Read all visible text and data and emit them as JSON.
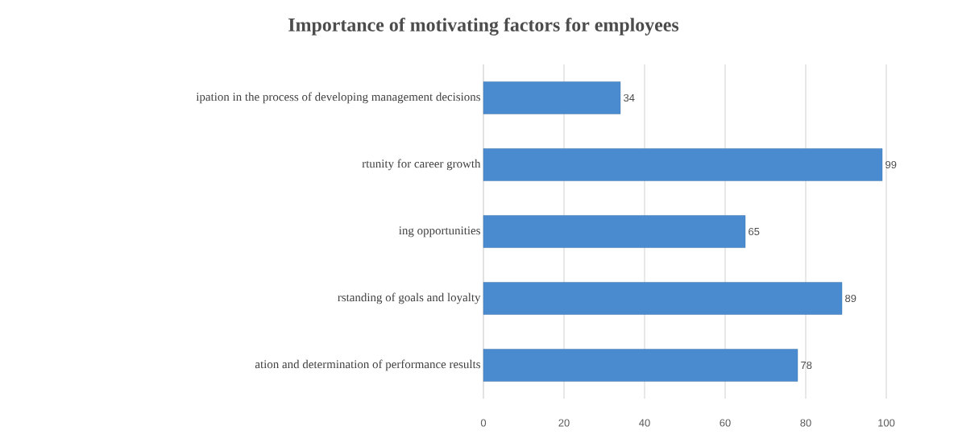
{
  "chart_data": {
    "type": "bar",
    "orientation": "horizontal",
    "title": "Importance of motivating factors for employees",
    "categories": [
      "ipation in the process of developing management decisions",
      "rtunity for career growth",
      "ing opportunities",
      "rstanding of goals and loyalty",
      "ation and determination of performance results"
    ],
    "values": [
      34,
      99,
      65,
      89,
      78
    ],
    "color": "#4a8bd0",
    "xlim": [
      0,
      100
    ],
    "xticks": [
      0,
      20,
      40,
      60,
      80,
      100
    ],
    "grid": "x",
    "data_labels": true
  }
}
